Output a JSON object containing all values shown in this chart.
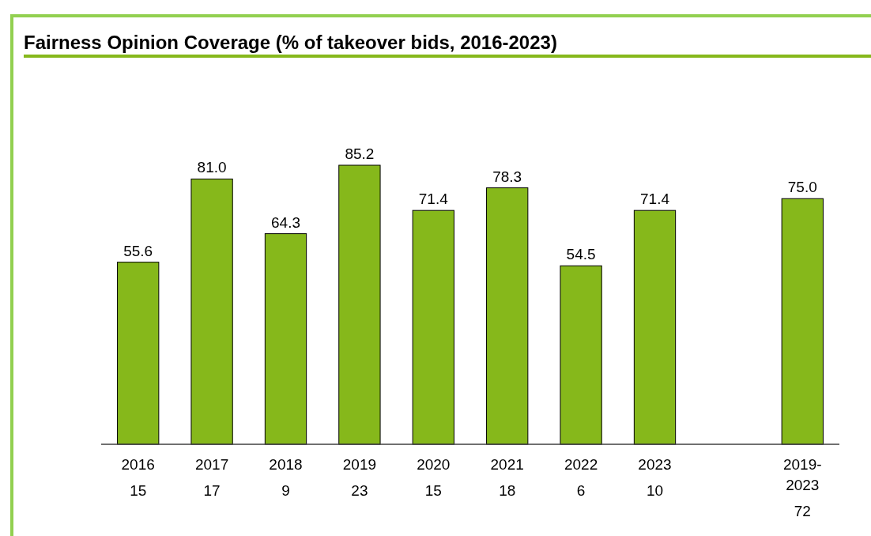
{
  "chart_data": {
    "type": "bar",
    "title": "Fairness Opinion Coverage (% of takeover bids, 2016-2023)",
    "categories": [
      "2016",
      "2017",
      "2018",
      "2019",
      "2020",
      "2021",
      "2022",
      "2023",
      null,
      "2019-\n2023"
    ],
    "values": [
      55.6,
      81.0,
      64.3,
      85.2,
      71.4,
      78.3,
      54.5,
      71.4,
      null,
      75.0
    ],
    "value_labels": [
      "55.6",
      "81.0",
      "64.3",
      "85.2",
      "71.4",
      "78.3",
      "54.5",
      "71.4",
      null,
      "75.0"
    ],
    "color": "#86b81b",
    "annotations": [
      "15",
      "17",
      "9",
      "23",
      "15",
      "18",
      "6",
      "10",
      "72"
    ]
  }
}
